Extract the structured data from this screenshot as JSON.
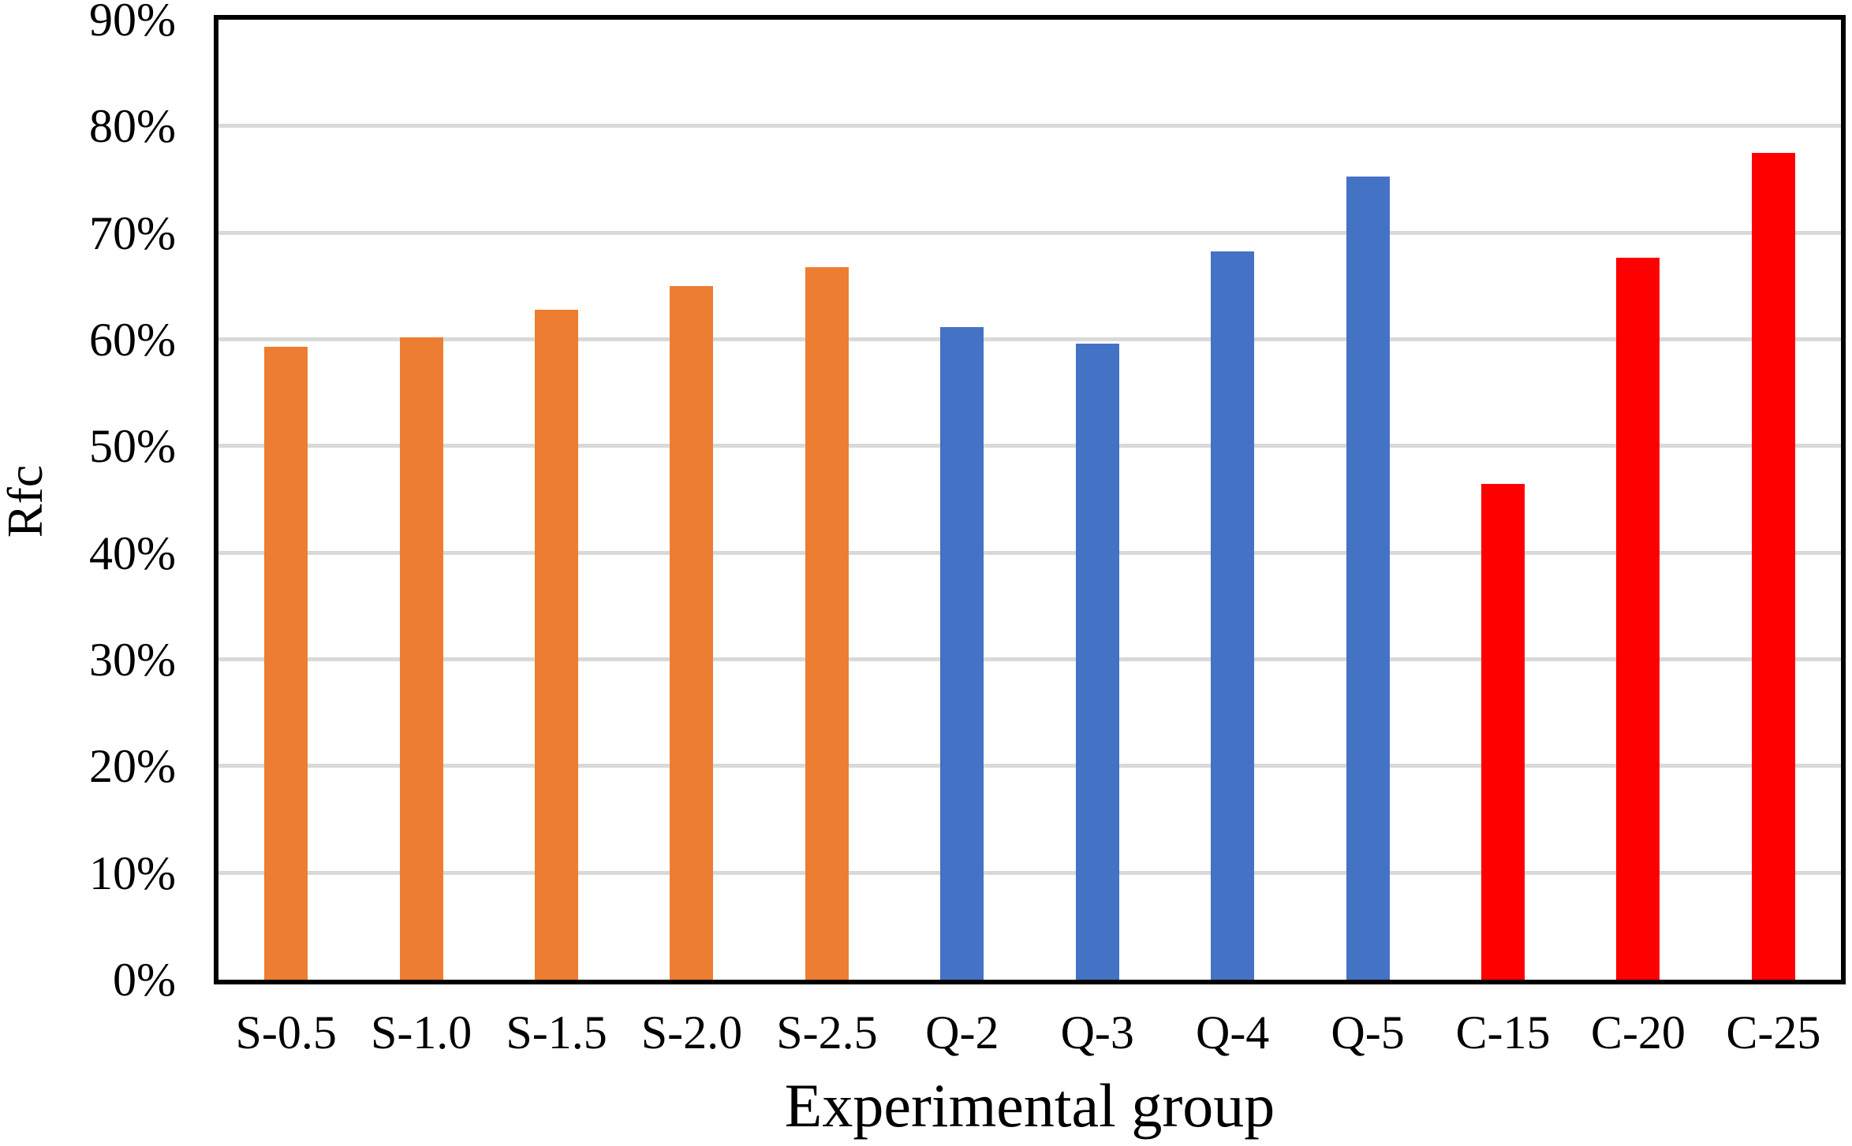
{
  "chart_data": {
    "type": "bar",
    "title": "",
    "xlabel": "Experimental group",
    "ylabel": "Rfc",
    "unit": "%",
    "categories": [
      "S-0.5",
      "S-1.0",
      "S-1.5",
      "S-2.0",
      "S-2.5",
      "Q-2",
      "Q-3",
      "Q-4",
      "Q-5",
      "C-15",
      "C-20",
      "C-25"
    ],
    "values": [
      59.3,
      60.2,
      62.8,
      65.0,
      66.8,
      61.2,
      59.6,
      68.3,
      75.3,
      46.5,
      67.7,
      77.5
    ],
    "bar_colors": [
      "#ED7D31",
      "#ED7D31",
      "#ED7D31",
      "#ED7D31",
      "#ED7D31",
      "#4472C4",
      "#4472C4",
      "#4472C4",
      "#4472C4",
      "#FF0000",
      "#FF0000",
      "#FF0000"
    ],
    "groups": [
      {
        "name": "S",
        "color": "#ED7D31",
        "categories": [
          "S-0.5",
          "S-1.0",
          "S-1.5",
          "S-2.0",
          "S-2.5"
        ]
      },
      {
        "name": "Q",
        "color": "#4472C4",
        "categories": [
          "Q-2",
          "Q-3",
          "Q-4",
          "Q-5"
        ]
      },
      {
        "name": "C",
        "color": "#FF0000",
        "categories": [
          "C-15",
          "C-20",
          "C-25"
        ]
      }
    ],
    "ylim": [
      0,
      90
    ],
    "ytick_step": 10,
    "ytick_labels": [
      "0%",
      "10%",
      "20%",
      "30%",
      "40%",
      "50%",
      "60%",
      "70%",
      "80%",
      "90%"
    ],
    "grid": true,
    "legend": false,
    "plot_border_color": "#000000",
    "gridline_color": "#D9D9D9",
    "background_color": "#FFFFFF"
  }
}
